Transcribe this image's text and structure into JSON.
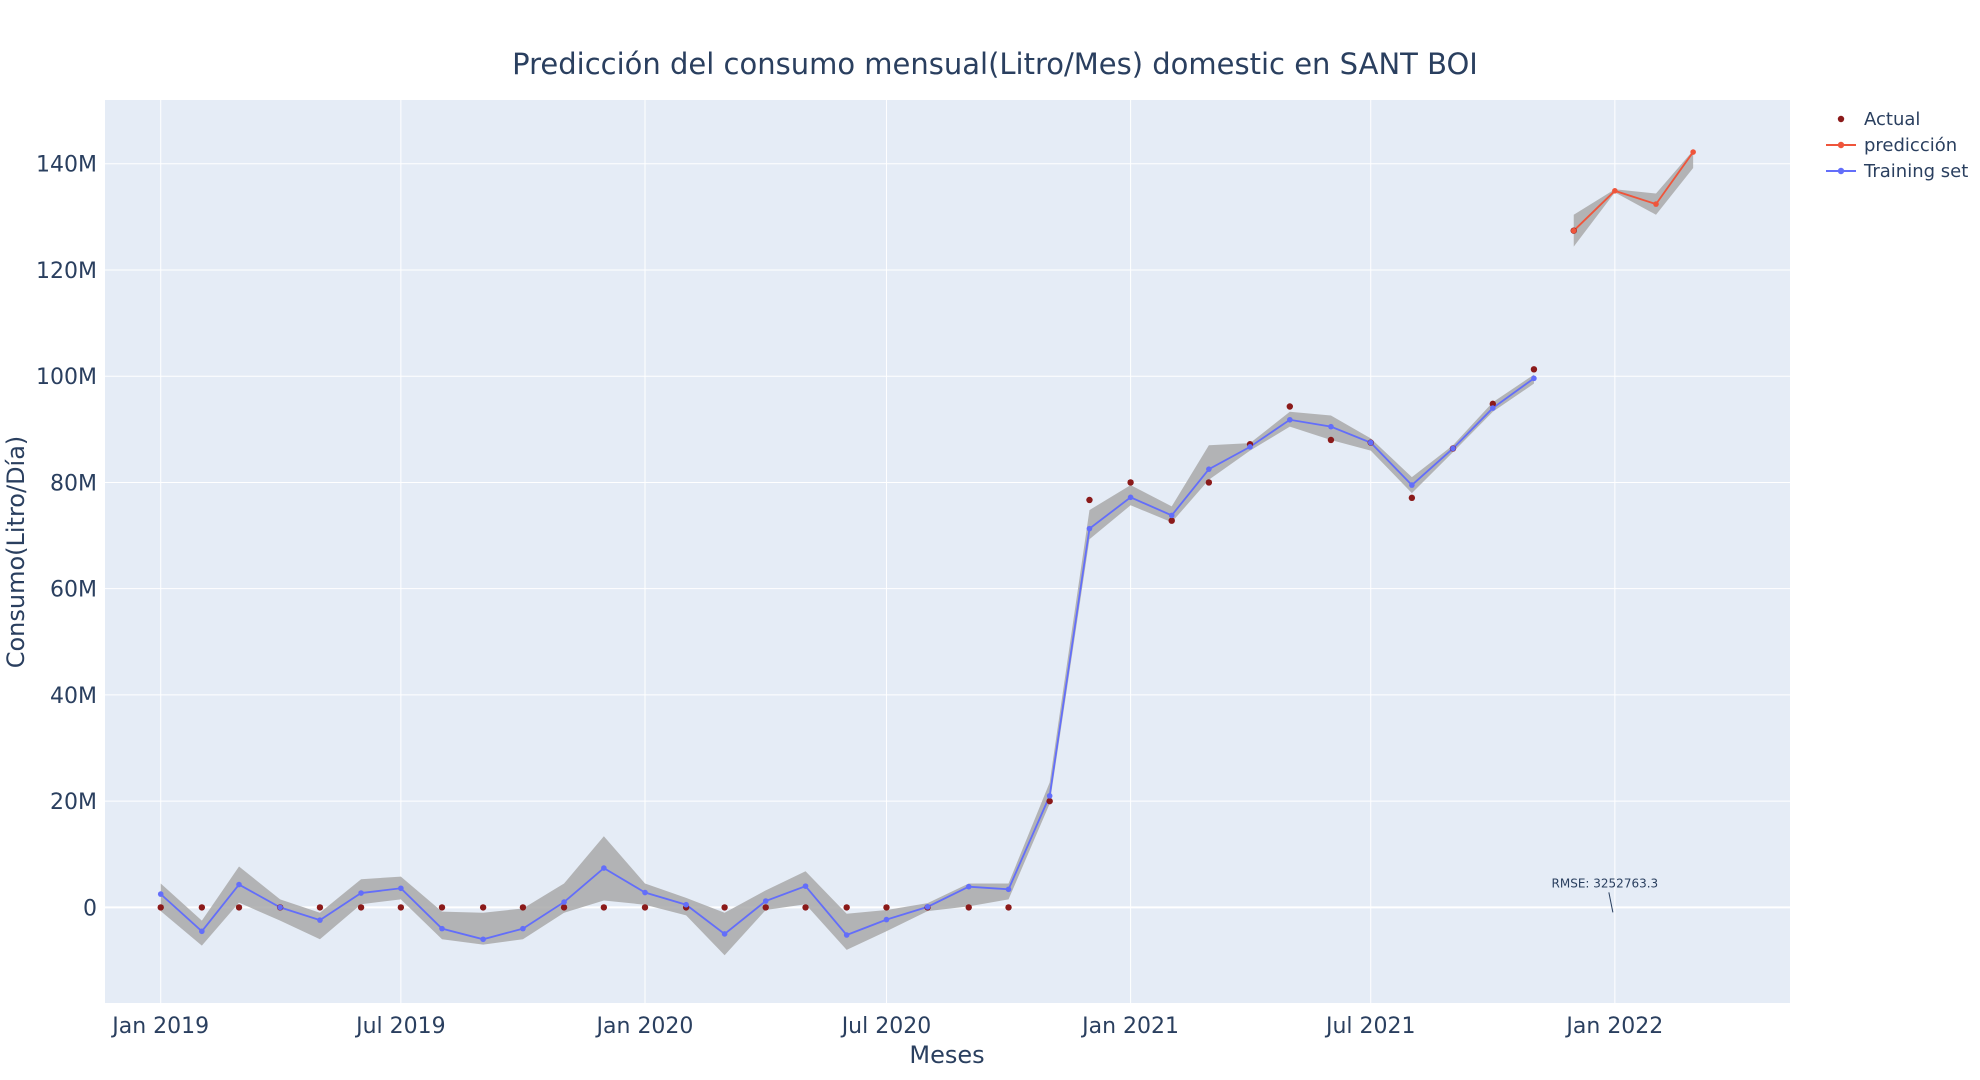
{
  "chart_data": {
    "type": "line",
    "title": "Predicción del consumo mensual(Litro/Mes) domestic en SANT BOI",
    "xlabel": "Meses",
    "ylabel": "Consumo(Litro/Día)",
    "x_range": [
      "2018-11-20",
      "2022-05-13"
    ],
    "ylim": [
      -18000000,
      152000000
    ],
    "x_ticks": [
      {
        "date": "2019-01-01",
        "label": "Jan 2019"
      },
      {
        "date": "2019-07-01",
        "label": "Jul 2019"
      },
      {
        "date": "2020-01-01",
        "label": "Jan 2020"
      },
      {
        "date": "2020-07-01",
        "label": "Jul 2020"
      },
      {
        "date": "2021-01-01",
        "label": "Jan 2021"
      },
      {
        "date": "2021-07-01",
        "label": "Jul 2021"
      },
      {
        "date": "2022-01-01",
        "label": "Jan 2022"
      }
    ],
    "y_ticks": [
      {
        "value": 0,
        "label": "0"
      },
      {
        "value": 20000000,
        "label": "20M"
      },
      {
        "value": 40000000,
        "label": "40M"
      },
      {
        "value": 60000000,
        "label": "60M"
      },
      {
        "value": 80000000,
        "label": "80M"
      },
      {
        "value": 100000000,
        "label": "100M"
      },
      {
        "value": 120000000,
        "label": "120M"
      },
      {
        "value": 140000000,
        "label": "140M"
      }
    ],
    "grid": true,
    "legend_position": "top-right, outside plot",
    "colors": {
      "plot_bg": "#e5ecf6",
      "grid": "#ffffff",
      "actual": "#8b1a1a",
      "prediccion": "#ef553b",
      "training": "#636efa",
      "band": "#a9a9a9",
      "text": "#2a3f5f"
    },
    "series": [
      {
        "name": "Actual",
        "mode": "markers",
        "x": [
          "2019-01-01",
          "2019-02-01",
          "2019-03-01",
          "2019-04-01",
          "2019-05-01",
          "2019-06-01",
          "2019-07-01",
          "2019-08-01",
          "2019-09-01",
          "2019-10-01",
          "2019-11-01",
          "2019-12-01",
          "2020-01-01",
          "2020-02-01",
          "2020-03-01",
          "2020-04-01",
          "2020-05-01",
          "2020-06-01",
          "2020-07-01",
          "2020-08-01",
          "2020-09-01",
          "2020-10-01",
          "2020-11-01",
          "2020-12-01",
          "2021-01-01",
          "2021-02-01",
          "2021-03-01",
          "2021-04-01",
          "2021-05-01",
          "2021-06-01",
          "2021-07-01",
          "2021-08-01",
          "2021-09-01",
          "2021-10-01",
          "2021-11-01",
          "2021-12-01"
        ],
        "values": [
          0,
          0,
          0,
          0,
          0,
          0,
          0,
          0,
          0,
          0,
          0,
          0,
          0,
          0,
          0,
          0,
          0,
          0,
          0,
          0,
          0,
          0,
          20000000,
          76700000,
          80000000,
          72800000,
          80000000,
          87200000,
          94300000,
          88000000,
          87500000,
          77100000,
          86400000,
          94800000,
          101300000,
          127400000
        ]
      },
      {
        "name": "predicción",
        "mode": "lines+markers",
        "x": [
          "2021-12-01",
          "2022-01-01",
          "2022-02-01",
          "2022-03-01"
        ],
        "values": [
          127400000,
          134900000,
          132400000,
          142200000
        ],
        "lower": [
          124400000,
          134600000,
          130400000,
          139200000
        ],
        "upper": [
          130400000,
          135200000,
          134400000,
          142500000
        ]
      },
      {
        "name": "Training set",
        "mode": "lines+markers",
        "x": [
          "2019-01-01",
          "2019-02-01",
          "2019-03-01",
          "2019-04-01",
          "2019-05-01",
          "2019-06-01",
          "2019-07-01",
          "2019-08-01",
          "2019-09-01",
          "2019-10-01",
          "2019-11-01",
          "2019-12-01",
          "2020-01-01",
          "2020-02-01",
          "2020-03-01",
          "2020-04-01",
          "2020-05-01",
          "2020-06-01",
          "2020-07-01",
          "2020-08-01",
          "2020-09-01",
          "2020-10-01",
          "2020-11-01",
          "2020-12-01",
          "2021-01-01",
          "2021-02-01",
          "2021-03-01",
          "2021-04-01",
          "2021-05-01",
          "2021-06-01",
          "2021-07-01",
          "2021-08-01",
          "2021-09-01",
          "2021-10-01",
          "2021-11-01"
        ],
        "values": [
          2500000,
          -4500000,
          4300000,
          0,
          -2400000,
          2700000,
          3600000,
          -4000000,
          -6000000,
          -4000000,
          1000000,
          7400000,
          2800000,
          500000,
          -5000000,
          1200000,
          4000000,
          -5200000,
          -2300000,
          100000,
          3900000,
          3400000,
          21000000,
          71300000,
          77200000,
          73800000,
          82500000,
          86700000,
          91800000,
          90500000,
          87500000,
          79500000,
          86400000,
          94000000,
          99600000
        ],
        "lower": [
          -700000,
          -7200000,
          900000,
          -2500000,
          -6000000,
          600000,
          1500000,
          -6000000,
          -7000000,
          -6000000,
          -1000000,
          1300000,
          500000,
          -1500000,
          -9000000,
          -500000,
          600000,
          -8000000,
          -4500000,
          -700000,
          200000,
          1500000,
          19500000,
          69300000,
          75700000,
          72500000,
          80500000,
          86000000,
          90500000,
          88000000,
          86000000,
          78000000,
          85700000,
          93300000,
          98600000
        ],
        "upper": [
          4500000,
          -2500000,
          7700000,
          1500000,
          -1000000,
          5300000,
          5800000,
          -800000,
          -1000000,
          -200000,
          4500000,
          13400000,
          4500000,
          1800000,
          -1000000,
          3200000,
          6800000,
          -1200000,
          -500000,
          800000,
          4500000,
          4500000,
          23500000,
          74800000,
          79500000,
          75500000,
          87000000,
          87400000,
          93300000,
          92600000,
          88300000,
          81000000,
          87000000,
          95100000,
          100300000
        ]
      }
    ],
    "annotation": {
      "text": "RMSE: 3252763.3",
      "x": "2022-01-01",
      "y": 0
    }
  }
}
